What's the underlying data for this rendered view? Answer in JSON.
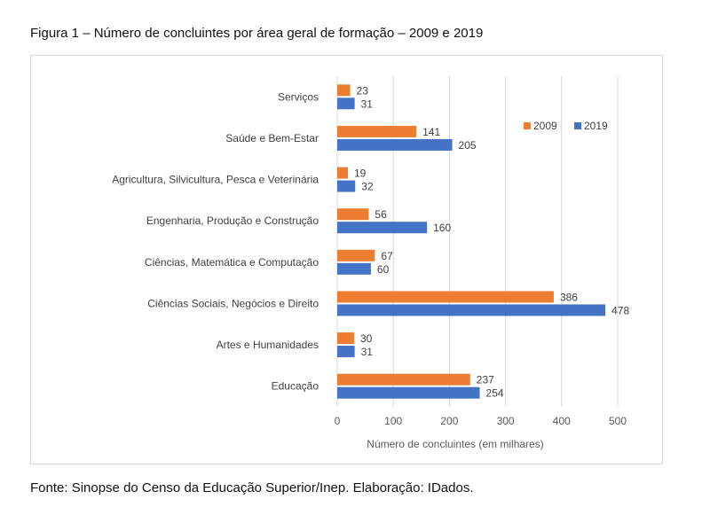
{
  "figure": {
    "title": "Figura 1 – Número de concluintes por área geral de formação – 2009 e 2019",
    "source": "Fonte: Sinopse do Censo da Educação Superior/Inep. Elaboração: IDados."
  },
  "chart_data": {
    "type": "bar",
    "orientation": "horizontal",
    "categories": [
      "Serviços",
      "Saúde e Bem-Estar",
      "Agricultura, Silvicultura, Pesca e Veterinária",
      "Engenharia, Produção e Construção",
      "Ciências, Matemática e Computação",
      "Ciências Sociais, Negócios e Direito",
      "Artes e Humanidades",
      "Educação"
    ],
    "series": [
      {
        "name": "2009",
        "color": "#ed7d31",
        "values": [
          23,
          141,
          19,
          56,
          67,
          386,
          30,
          237
        ]
      },
      {
        "name": "2019",
        "color": "#4472c4",
        "values": [
          31,
          205,
          32,
          160,
          60,
          478,
          31,
          254
        ]
      }
    ],
    "xlabel": "Número de concluintes (em milhares)",
    "xlim": [
      0,
      500
    ],
    "xticks": [
      0,
      100,
      200,
      300,
      400,
      500
    ],
    "grid": true,
    "legend_position": "top-right",
    "data_labels": true
  }
}
